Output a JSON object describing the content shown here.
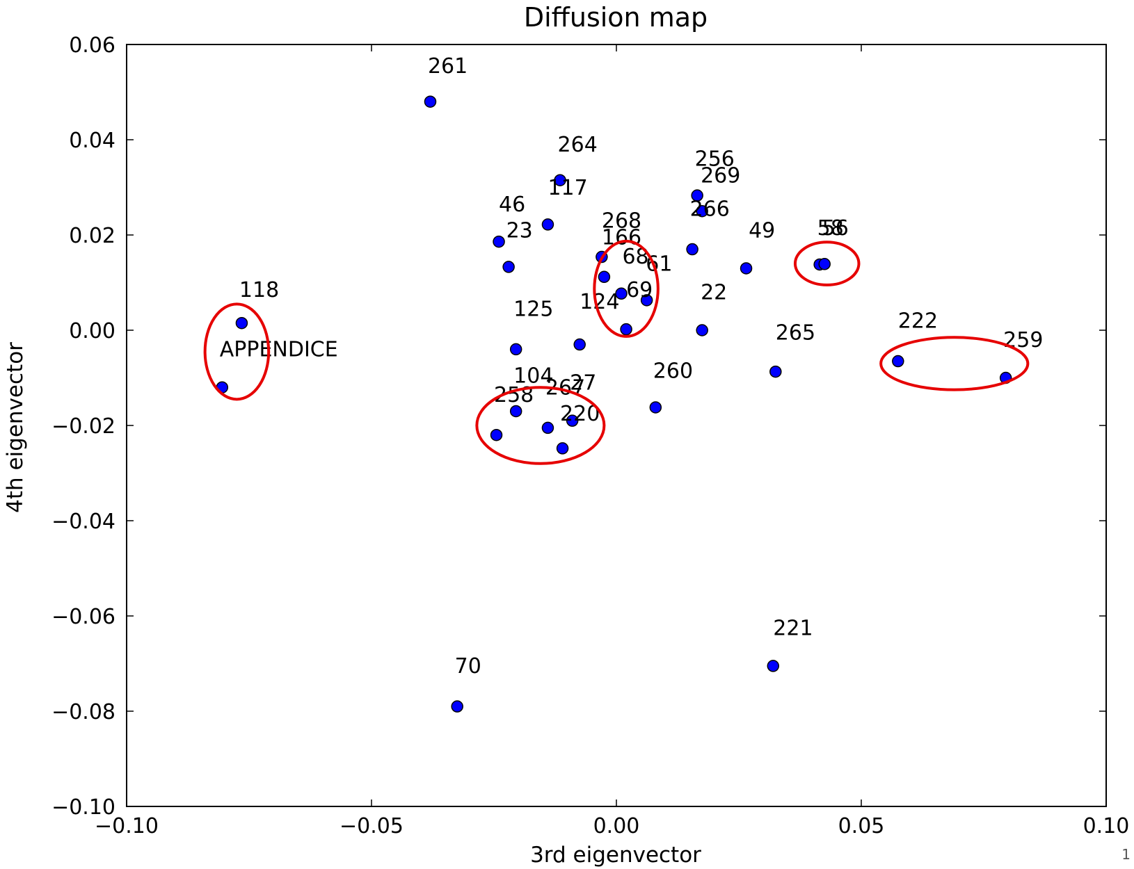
{
  "chart_data": {
    "type": "scatter",
    "title": "Diffusion map",
    "xlabel": "3rd eigenvector",
    "ylabel": "4th eigenvector",
    "xlim": [
      -0.1,
      0.1
    ],
    "ylim": [
      -0.1,
      0.06
    ],
    "x_ticks": [
      -0.1,
      -0.05,
      0.0,
      0.05,
      0.1
    ],
    "x_tick_labels": [
      "−0.10",
      "−0.05",
      "0.00",
      "0.05",
      "0.10"
    ],
    "y_ticks": [
      0.06,
      0.04,
      0.02,
      0.0,
      -0.02,
      -0.04,
      -0.06,
      -0.08,
      -0.1
    ],
    "y_tick_labels": [
      "0.06",
      "0.04",
      "0.02",
      "0.00",
      "−0.02",
      "−0.04",
      "−0.06",
      "−0.08",
      "−0.10"
    ],
    "grid": false,
    "marker_color": "#0000ff",
    "marker_edge_color": "#000000",
    "highlight_color": "#e60000",
    "points": [
      {
        "x": -0.038,
        "y": 0.048
      },
      {
        "x": -0.0115,
        "y": 0.0315
      },
      {
        "x": -0.014,
        "y": 0.0222
      },
      {
        "x": -0.024,
        "y": 0.0186
      },
      {
        "x": -0.022,
        "y": 0.0133
      },
      {
        "x": -0.003,
        "y": 0.0154
      },
      {
        "x": -0.0025,
        "y": 0.0112
      },
      {
        "x": 0.001,
        "y": 0.0077
      },
      {
        "x": 0.0062,
        "y": 0.0063
      },
      {
        "x": 0.002,
        "y": 0.0002
      },
      {
        "x": 0.0165,
        "y": 0.0283
      },
      {
        "x": 0.0175,
        "y": 0.025
      },
      {
        "x": 0.0155,
        "y": 0.017
      },
      {
        "x": 0.0265,
        "y": 0.013
      },
      {
        "x": 0.0415,
        "y": 0.0138
      },
      {
        "x": 0.0425,
        "y": 0.0139
      },
      {
        "x": 0.0175,
        "y": 0.0
      },
      {
        "x": -0.0765,
        "y": 0.0015
      },
      {
        "x": -0.0805,
        "y": -0.012
      },
      {
        "x": -0.0205,
        "y": -0.004
      },
      {
        "x": -0.0075,
        "y": -0.003
      },
      {
        "x": 0.0325,
        "y": -0.0087
      },
      {
        "x": 0.0575,
        "y": -0.0065
      },
      {
        "x": 0.0795,
        "y": -0.01
      },
      {
        "x": 0.008,
        "y": -0.0162
      },
      {
        "x": -0.0205,
        "y": -0.017
      },
      {
        "x": -0.0245,
        "y": -0.022
      },
      {
        "x": -0.014,
        "y": -0.0205
      },
      {
        "x": -0.009,
        "y": -0.019
      },
      {
        "x": -0.011,
        "y": -0.0248
      },
      {
        "x": -0.0325,
        "y": -0.079
      },
      {
        "x": 0.032,
        "y": -0.0705
      }
    ],
    "labels": [
      {
        "text": "261",
        "x": -0.0385,
        "y": 0.054
      },
      {
        "text": "264",
        "x": -0.012,
        "y": 0.0375
      },
      {
        "text": "117",
        "x": -0.014,
        "y": 0.0285
      },
      {
        "text": "46",
        "x": -0.024,
        "y": 0.025
      },
      {
        "text": "23",
        "x": -0.0225,
        "y": 0.0195
      },
      {
        "text": "268",
        "x": -0.003,
        "y": 0.0215
      },
      {
        "text": "166",
        "x": -0.003,
        "y": 0.018
      },
      {
        "text": "68",
        "x": 0.0012,
        "y": 0.014
      },
      {
        "text": "61",
        "x": 0.006,
        "y": 0.0125
      },
      {
        "text": "69",
        "x": 0.002,
        "y": 0.007
      },
      {
        "text": "124",
        "x": -0.0075,
        "y": 0.0045
      },
      {
        "text": "125",
        "x": -0.021,
        "y": 0.003
      },
      {
        "text": "256",
        "x": 0.016,
        "y": 0.0345
      },
      {
        "text": "269",
        "x": 0.0172,
        "y": 0.031
      },
      {
        "text": "266",
        "x": 0.015,
        "y": 0.024
      },
      {
        "text": "49",
        "x": 0.027,
        "y": 0.0195
      },
      {
        "text": "58",
        "x": 0.041,
        "y": 0.02
      },
      {
        "text": "56",
        "x": 0.042,
        "y": 0.02
      },
      {
        "text": "22",
        "x": 0.0172,
        "y": 0.0065
      },
      {
        "text": "118",
        "x": -0.077,
        "y": 0.007
      },
      {
        "text": "265",
        "x": 0.0325,
        "y": -0.002
      },
      {
        "text": "222",
        "x": 0.0575,
        "y": 0.0005
      },
      {
        "text": "259",
        "x": 0.079,
        "y": -0.0035
      },
      {
        "text": "260",
        "x": 0.0075,
        "y": -0.01
      },
      {
        "text": "104",
        "x": -0.021,
        "y": -0.011
      },
      {
        "text": "258",
        "x": -0.025,
        "y": -0.015
      },
      {
        "text": "267",
        "x": -0.0145,
        "y": -0.0135
      },
      {
        "text": "27",
        "x": -0.0095,
        "y": -0.0125
      },
      {
        "text": "220",
        "x": -0.0115,
        "y": -0.019
      },
      {
        "text": "70",
        "x": -0.033,
        "y": -0.072
      },
      {
        "text": "221",
        "x": 0.032,
        "y": -0.064
      }
    ],
    "annotation": {
      "text": "APPENDICE",
      "x": -0.081,
      "y": -0.0055
    },
    "highlight_ellipses": [
      {
        "cx": -0.0775,
        "cy": -0.0045,
        "rx": 0.0065,
        "ry": 0.01
      },
      {
        "cx": 0.002,
        "cy": 0.0087,
        "rx": 0.0065,
        "ry": 0.01
      },
      {
        "cx": 0.043,
        "cy": 0.014,
        "rx": 0.0065,
        "ry": 0.0045
      },
      {
        "cx": 0.069,
        "cy": -0.007,
        "rx": 0.015,
        "ry": 0.0055
      },
      {
        "cx": -0.0155,
        "cy": -0.02,
        "rx": 0.013,
        "ry": 0.008
      }
    ]
  },
  "page_number": "1"
}
